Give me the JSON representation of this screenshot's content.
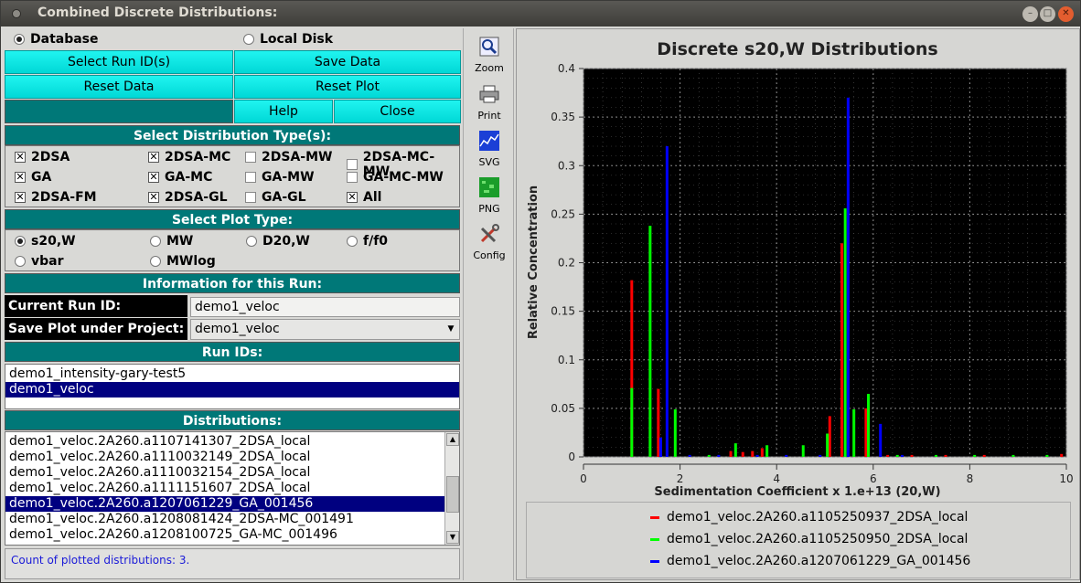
{
  "window": {
    "title": "Combined Discrete Distributions:"
  },
  "source": {
    "database_label": "Database",
    "local_disk_label": "Local Disk"
  },
  "buttons": {
    "select_run": "Select Run ID(s)",
    "save_data": "Save Data",
    "reset_data": "Reset Data",
    "reset_plot": "Reset Plot",
    "help": "Help",
    "close": "Close"
  },
  "dist_types": {
    "header": "Select Distribution Type(s):",
    "items": [
      {
        "label": "2DSA",
        "checked": true
      },
      {
        "label": "2DSA-MC",
        "checked": true
      },
      {
        "label": "2DSA-MW",
        "checked": false
      },
      {
        "label": "2DSA-MC-MW",
        "checked": false
      },
      {
        "label": "GA",
        "checked": true
      },
      {
        "label": "GA-MC",
        "checked": true
      },
      {
        "label": "GA-MW",
        "checked": false
      },
      {
        "label": "GA-MC-MW",
        "checked": false
      },
      {
        "label": "2DSA-FM",
        "checked": true
      },
      {
        "label": "2DSA-GL",
        "checked": true
      },
      {
        "label": "GA-GL",
        "checked": false
      },
      {
        "label": "All",
        "checked": true
      }
    ]
  },
  "plot_type": {
    "header": "Select Plot Type:",
    "items": [
      {
        "label": "s20,W",
        "selected": true
      },
      {
        "label": "MW",
        "selected": false
      },
      {
        "label": "D20,W",
        "selected": false
      },
      {
        "label": "f/f0",
        "selected": false
      },
      {
        "label": "vbar",
        "selected": false
      },
      {
        "label": "MWlog",
        "selected": false
      }
    ]
  },
  "run_info": {
    "header": "Information for this Run:",
    "current_run_label": "Current Run ID:",
    "current_run_value": "demo1_veloc",
    "save_plot_label": "Save Plot under Project:",
    "save_plot_value": "demo1_veloc"
  },
  "run_ids": {
    "header": "Run IDs:",
    "items": [
      "demo1_intensity-gary-test5",
      "demo1_veloc"
    ],
    "selected_index": 1
  },
  "distributions": {
    "header": "Distributions:",
    "items": [
      "demo1_veloc.2A260.a1107141307_2DSA_local",
      "demo1_veloc.2A260.a1110032149_2DSA_local",
      "demo1_veloc.2A260.a1110032154_2DSA_local",
      "demo1_veloc.2A260.a1111151607_2DSA_local",
      "demo1_veloc.2A260.a1207061229_GA_001456",
      "demo1_veloc.2A260.a1208081424_2DSA-MC_001491",
      "demo1_veloc.2A260.a1208100725_GA-MC_001496"
    ],
    "selected_index": 4
  },
  "status": "Count of plotted distributions: 3.",
  "toolbar": {
    "zoom": "Zoom",
    "print": "Print",
    "svg": "SVG",
    "png": "PNG",
    "config": "Config"
  },
  "chart_data": {
    "type": "bar",
    "title": "Discrete s20,W Distributions",
    "xlabel": "Sedimentation Coefficient x 1.e+13 (20,W)",
    "ylabel": "Relative Concentration",
    "xlim": [
      0,
      10
    ],
    "ylim": [
      0,
      0.4
    ],
    "xticks": [
      "0",
      "2",
      "4",
      "6",
      "8",
      "10"
    ],
    "yticks": [
      "0",
      "0.05",
      "0.1",
      "0.15",
      "0.2",
      "0.25",
      "0.3",
      "0.35",
      "0.4"
    ],
    "grid": true,
    "background": "#000000",
    "series": [
      {
        "name": "demo1_veloc.2A260.a1105250937_2DSA_local",
        "color": "#ff0000",
        "points": [
          [
            1.0,
            0.182
          ],
          [
            1.55,
            0.07
          ],
          [
            3.05,
            0.006
          ],
          [
            3.3,
            0.005
          ],
          [
            3.5,
            0.006
          ],
          [
            3.7,
            0.009
          ],
          [
            5.1,
            0.042
          ],
          [
            5.35,
            0.22
          ],
          [
            5.85,
            0.05
          ],
          [
            6.3,
            0.002
          ],
          [
            6.8,
            0.002
          ],
          [
            7.5,
            0.002
          ],
          [
            8.3,
            0.002
          ],
          [
            9.9,
            0.003
          ]
        ]
      },
      {
        "name": "demo1_veloc.2A260.a1105250950_2DSA_local",
        "color": "#00ff00",
        "points": [
          [
            1.0,
            0.071
          ],
          [
            1.38,
            0.238
          ],
          [
            1.9,
            0.049
          ],
          [
            2.6,
            0.002
          ],
          [
            3.15,
            0.014
          ],
          [
            3.8,
            0.012
          ],
          [
            4.55,
            0.012
          ],
          [
            5.05,
            0.024
          ],
          [
            5.42,
            0.256
          ],
          [
            5.6,
            0.049
          ],
          [
            5.9,
            0.065
          ],
          [
            6.5,
            0.002
          ],
          [
            7.3,
            0.002
          ],
          [
            8.1,
            0.002
          ],
          [
            8.9,
            0.002
          ],
          [
            9.6,
            0.002
          ]
        ]
      },
      {
        "name": "demo1_veloc.2A260.a1207061229_GA_001456",
        "color": "#0000ff",
        "points": [
          [
            1.6,
            0.02
          ],
          [
            1.73,
            0.32
          ],
          [
            2.2,
            0.002
          ],
          [
            2.8,
            0.002
          ],
          [
            3.6,
            0.002
          ],
          [
            4.2,
            0.002
          ],
          [
            4.9,
            0.002
          ],
          [
            5.48,
            0.37
          ],
          [
            6.15,
            0.034
          ],
          [
            6.6,
            0.002
          ]
        ]
      }
    ],
    "legend_position": "bottom"
  }
}
